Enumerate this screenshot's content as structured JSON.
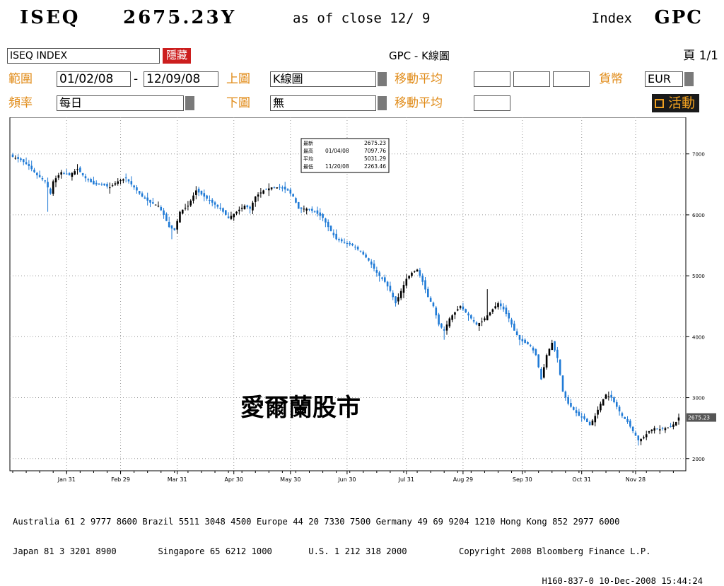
{
  "header": {
    "ticker": "ISEQ",
    "price": "2675.23Y",
    "asof": "as of close 12/ 9",
    "index_label": "Index",
    "code": "GPC"
  },
  "toolbar": {
    "security": "ISEQ INDEX",
    "hide_label": "隱藏",
    "title": "GPC - K線圖",
    "page": "頁 1/1"
  },
  "form": {
    "range_label": "範圍",
    "range_start": "01/02/08",
    "range_sep": "-",
    "range_end": "12/09/08",
    "upper_label": "上圖",
    "upper_value": "K線圖",
    "ma_label_1": "移動平均",
    "currency_label": "貨幣",
    "currency_value": "EUR",
    "freq_label": "頻率",
    "freq_value": "每日",
    "lower_label": "下圖",
    "lower_value": "無",
    "ma_label_2": "移動平均",
    "active_label": "活動"
  },
  "chart_data": {
    "type": "candlestick",
    "watermark": "愛爾蘭股市",
    "ylim": [
      1800,
      7600
    ],
    "yticks": [
      2000,
      3000,
      4000,
      5000,
      6000,
      7000
    ],
    "xticks": [
      "Jan 31",
      "Feb 29",
      "Mar 31",
      "Apr 30",
      "May 30",
      "Jun 30",
      "Jul 31",
      "Aug 29",
      "Sep 30",
      "Oct 31",
      "Nov 28"
    ],
    "last_value_label": "2675.23",
    "stats_box": {
      "rows": [
        {
          "label": "最新",
          "date": "",
          "value": "2675.23"
        },
        {
          "label": "最高",
          "date": "01/04/08",
          "value": "7097.76"
        },
        {
          "label": "平均",
          "date": "",
          "value": "5031.29"
        },
        {
          "label": "最低",
          "date": "11/20/08",
          "value": "2263.46"
        }
      ]
    },
    "close_path": [
      [
        0,
        6950
      ],
      [
        3,
        6900
      ],
      [
        6,
        6800
      ],
      [
        9,
        6650
      ],
      [
        12,
        6550
      ],
      [
        14,
        6350
      ],
      [
        15,
        6550
      ],
      [
        18,
        6700
      ],
      [
        21,
        6650
      ],
      [
        24,
        6750
      ],
      [
        27,
        6600
      ],
      [
        30,
        6500
      ],
      [
        33,
        6500
      ],
      [
        36,
        6450
      ],
      [
        39,
        6550
      ],
      [
        42,
        6600
      ],
      [
        45,
        6450
      ],
      [
        48,
        6300
      ],
      [
        51,
        6200
      ],
      [
        54,
        6150
      ],
      [
        56,
        6000
      ],
      [
        58,
        5800
      ],
      [
        60,
        5750
      ],
      [
        62,
        6050
      ],
      [
        65,
        6150
      ],
      [
        68,
        6400
      ],
      [
        71,
        6300
      ],
      [
        74,
        6200
      ],
      [
        77,
        6100
      ],
      [
        80,
        5950
      ],
      [
        83,
        6050
      ],
      [
        86,
        6150
      ],
      [
        88,
        6100
      ],
      [
        90,
        6300
      ],
      [
        93,
        6400
      ],
      [
        96,
        6450
      ],
      [
        99,
        6450
      ],
      [
        102,
        6400
      ],
      [
        104,
        6300
      ],
      [
        106,
        6100
      ],
      [
        109,
        6100
      ],
      [
        112,
        6050
      ],
      [
        115,
        5950
      ],
      [
        117,
        5800
      ],
      [
        120,
        5600
      ],
      [
        123,
        5550
      ],
      [
        126,
        5500
      ],
      [
        129,
        5400
      ],
      [
        132,
        5250
      ],
      [
        135,
        5050
      ],
      [
        138,
        4900
      ],
      [
        140,
        4750
      ],
      [
        142,
        4550
      ],
      [
        144,
        4750
      ],
      [
        146,
        4950
      ],
      [
        148,
        5050
      ],
      [
        150,
        5100
      ],
      [
        152,
        4900
      ],
      [
        154,
        4650
      ],
      [
        156,
        4500
      ],
      [
        158,
        4200
      ],
      [
        160,
        4100
      ],
      [
        162,
        4300
      ],
      [
        164,
        4400
      ],
      [
        166,
        4500
      ],
      [
        168,
        4400
      ],
      [
        170,
        4300
      ],
      [
        172,
        4200
      ],
      [
        174,
        4250
      ],
      [
        176,
        4350
      ],
      [
        178,
        4450
      ],
      [
        180,
        4550
      ],
      [
        182,
        4450
      ],
      [
        184,
        4300
      ],
      [
        186,
        4100
      ],
      [
        188,
        3950
      ],
      [
        190,
        3900
      ],
      [
        192,
        3850
      ],
      [
        194,
        3700
      ],
      [
        196,
        3300
      ],
      [
        198,
        3700
      ],
      [
        200,
        3900
      ],
      [
        202,
        3650
      ],
      [
        204,
        3100
      ],
      [
        206,
        2900
      ],
      [
        208,
        2800
      ],
      [
        210,
        2700
      ],
      [
        212,
        2650
      ],
      [
        214,
        2550
      ],
      [
        216,
        2700
      ],
      [
        218,
        2900
      ],
      [
        220,
        3050
      ],
      [
        222,
        3000
      ],
      [
        224,
        2850
      ],
      [
        226,
        2700
      ],
      [
        228,
        2600
      ],
      [
        230,
        2450
      ],
      [
        232,
        2300
      ],
      [
        234,
        2350
      ],
      [
        236,
        2450
      ],
      [
        238,
        2500
      ],
      [
        240,
        2480
      ],
      [
        242,
        2500
      ],
      [
        244,
        2520
      ],
      [
        246,
        2600
      ],
      [
        247,
        2675
      ]
    ]
  },
  "footer": {
    "line1": "Australia 61 2 9777 8600 Brazil 5511 3048 4500 Europe 44 20 7330 7500 Germany 49 69 9204 1210 Hong Kong 852 2977 6000",
    "line2": "Japan 81 3 3201 8900        Singapore 65 6212 1000       U.S. 1 212 318 2000          Copyright 2008 Bloomberg Finance L.P.",
    "line3": "H160-837-0 10-Dec-2008 15:44:24"
  }
}
